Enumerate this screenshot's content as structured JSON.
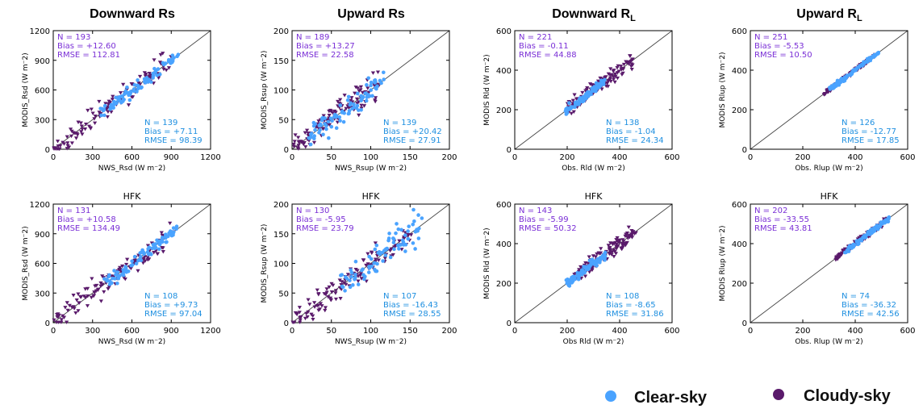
{
  "column_titles": [
    {
      "main": "Downward Rs",
      "sub": ""
    },
    {
      "main": "Upward Rs",
      "sub": ""
    },
    {
      "main": "Downward R",
      "sub": "L"
    },
    {
      "main": "Upward R",
      "sub": "L"
    }
  ],
  "legend": {
    "clear_label": "Clear-sky",
    "cloudy_label": "Cloudy-sky",
    "clear_color": "#4aa3ff",
    "cloudy_color": "#5a1a6b"
  },
  "chart_data": [
    {
      "type": "scatter",
      "row": 0,
      "col": 0,
      "site_label": "",
      "xlabel": "NWS_Rsd (W m⁻2)",
      "ylabel": "MODIS_Rsd (W m⁻2)",
      "xlim": [
        0,
        1200
      ],
      "ylim": [
        0,
        1200
      ],
      "xticks": [
        0,
        300,
        600,
        900,
        1200
      ],
      "yticks": [
        0,
        300,
        600,
        900,
        1200
      ],
      "x_tick_labels": [
        "0",
        "300",
        "600",
        "900",
        "1200"
      ],
      "y_tick_labels": [
        "0",
        "300",
        "600",
        "900",
        "1200"
      ],
      "cloudy": {
        "N": "N = 193",
        "Bias": "Bias = +12.60",
        "RMSE": "RMSE = 112.81",
        "lo": 0,
        "hi": 900,
        "spread": 110
      },
      "clear": {
        "N": "N = 139",
        "Bias": "Bias = +7.11",
        "RMSE": "RMSE = 98.39",
        "lo": 350,
        "hi": 950,
        "spread": 55
      }
    },
    {
      "type": "scatter",
      "row": 0,
      "col": 1,
      "site_label": "",
      "xlabel": "NWS_Rsup (W m⁻2)",
      "ylabel": "MODIS_Rsup (W m⁻2)",
      "xlim": [
        0,
        200
      ],
      "ylim": [
        0,
        200
      ],
      "xticks": [
        0,
        50,
        100,
        150,
        200
      ],
      "yticks": [
        0,
        50,
        100,
        150,
        200
      ],
      "x_tick_labels": [
        "0",
        "50",
        "100",
        "150",
        "200"
      ],
      "y_tick_labels": [
        "0",
        "50",
        "100",
        "150",
        "200"
      ],
      "cloudy": {
        "N": "N = 189",
        "Bias": "Bias = +13.27",
        "RMSE": "RMSE = 22.58",
        "lo": 0,
        "hi": 110,
        "spread": 20
      },
      "clear": {
        "N": "N = 139",
        "Bias": "Bias = +20.42",
        "RMSE": "RMSE = 27.91",
        "lo": 20,
        "hi": 115,
        "spread": 18
      }
    },
    {
      "type": "scatter",
      "row": 0,
      "col": 2,
      "site_label": "",
      "xlabel": "Obs. Rld (W m⁻2)",
      "ylabel": "MODIS Rld (W m⁻2)",
      "xlim": [
        0,
        600
      ],
      "ylim": [
        0,
        600
      ],
      "xticks": [
        0,
        200,
        400,
        600
      ],
      "yticks": [
        0,
        200,
        400,
        600
      ],
      "x_tick_labels": [
        "0",
        "200",
        "400",
        "600"
      ],
      "y_tick_labels": [
        "0",
        "200",
        "400",
        "600"
      ],
      "cloudy": {
        "N": "N = 221",
        "Bias": "Bias = -0.11",
        "RMSE": "RMSE = 44.88",
        "lo": 200,
        "hi": 460,
        "spread": 40
      },
      "clear": {
        "N": "N = 138",
        "Bias": "Bias = -1.04",
        "RMSE": "RMSE = 24.34",
        "lo": 190,
        "hi": 340,
        "spread": 18
      }
    },
    {
      "type": "scatter",
      "row": 0,
      "col": 3,
      "site_label": "",
      "xlabel": "Obs. Rlup (W m⁻2)",
      "ylabel": "MODIS Rlup (W m⁻2)",
      "xlim": [
        0,
        600
      ],
      "ylim": [
        0,
        600
      ],
      "xticks": [
        0,
        200,
        400,
        600
      ],
      "yticks": [
        0,
        200,
        400,
        600
      ],
      "x_tick_labels": [
        "0",
        "200",
        "400",
        "600"
      ],
      "y_tick_labels": [
        "0",
        "200",
        "400",
        "600"
      ],
      "cloudy": {
        "N": "N = 251",
        "Bias": "Bias = -5.53",
        "RMSE": "RMSE = 10.50",
        "lo": 280,
        "hi": 480,
        "spread": 8
      },
      "clear": {
        "N": "N = 126",
        "Bias": "Bias = -12.77",
        "RMSE": "RMSE = 17.85",
        "lo": 300,
        "hi": 490,
        "spread": 10
      }
    },
    {
      "type": "scatter",
      "row": 1,
      "col": 0,
      "site_label": "HFK",
      "xlabel": "NWS_Rsd (W m⁻2)",
      "ylabel": "MODIS_Rsd (W m⁻2)",
      "xlim": [
        0,
        1200
      ],
      "ylim": [
        0,
        1200
      ],
      "xticks": [
        0,
        300,
        600,
        900,
        1200
      ],
      "yticks": [
        0,
        300,
        600,
        900,
        1200
      ],
      "x_tick_labels": [
        "0",
        "300",
        "600",
        "900",
        "1200"
      ],
      "y_tick_labels": [
        "0",
        "300",
        "600",
        "900",
        "1200"
      ],
      "cloudy": {
        "N": "N = 131",
        "Bias": "Bias = +10.58",
        "RMSE": "RMSE = 134.49",
        "lo": 0,
        "hi": 900,
        "spread": 120
      },
      "clear": {
        "N": "N = 108",
        "Bias": "Bias = +9.73",
        "RMSE": "RMSE = 97.04",
        "lo": 400,
        "hi": 950,
        "spread": 60
      }
    },
    {
      "type": "scatter",
      "row": 1,
      "col": 1,
      "site_label": "HFK",
      "xlabel": "NWS_Rsup (W m⁻2)",
      "ylabel": "MODIS_Rsup (W m⁻2)",
      "xlim": [
        0,
        200
      ],
      "ylim": [
        0,
        200
      ],
      "xticks": [
        0,
        50,
        100,
        150,
        200
      ],
      "yticks": [
        0,
        50,
        100,
        150,
        200
      ],
      "x_tick_labels": [
        "0",
        "50",
        "100",
        "150",
        "200"
      ],
      "y_tick_labels": [
        "0",
        "50",
        "100",
        "150",
        "200"
      ],
      "cloudy": {
        "N": "N = 130",
        "Bias": "Bias = -5.95",
        "RMSE": "RMSE = 23.79",
        "lo": 0,
        "hi": 150,
        "spread": 20
      },
      "clear": {
        "N": "N = 107",
        "Bias": "Bias = -16.43",
        "RMSE": "RMSE = 28.55",
        "lo": 60,
        "hi": 165,
        "spread": 25
      }
    },
    {
      "type": "scatter",
      "row": 1,
      "col": 2,
      "site_label": "HFK",
      "xlabel": "Obs Rld (W m⁻2)",
      "ylabel": "MODIS Rld (W m⁻2)",
      "xlim": [
        0,
        600
      ],
      "ylim": [
        0,
        600
      ],
      "xticks": [
        0,
        200,
        400,
        600
      ],
      "yticks": [
        0,
        200,
        400,
        600
      ],
      "x_tick_labels": [
        "0",
        "200",
        "400",
        "600"
      ],
      "y_tick_labels": [
        "0",
        "200",
        "400",
        "600"
      ],
      "cloudy": {
        "N": "N = 143",
        "Bias": "Bias = -5.99",
        "RMSE": "RMSE = 50.32",
        "lo": 240,
        "hi": 460,
        "spread": 42
      },
      "clear": {
        "N": "N = 108",
        "Bias": "Bias = -8.65",
        "RMSE": "RMSE = 31.86",
        "lo": 200,
        "hi": 350,
        "spread": 20
      }
    },
    {
      "type": "scatter",
      "row": 1,
      "col": 3,
      "site_label": "HFK",
      "xlabel": "Obs. Rlup (W m⁻2)",
      "ylabel": "MODIS Rlup (W m⁻2)",
      "xlim": [
        0,
        600
      ],
      "ylim": [
        0,
        600
      ],
      "xticks": [
        0,
        200,
        400,
        600
      ],
      "yticks": [
        0,
        200,
        400,
        600
      ],
      "x_tick_labels": [
        "0",
        "200",
        "400",
        "600"
      ],
      "y_tick_labels": [
        "0",
        "200",
        "400",
        "600"
      ],
      "cloudy": {
        "N": "N = 202",
        "Bias": "Bias = -33.55",
        "RMSE": "RMSE = 43.81",
        "lo": 320,
        "hi": 520,
        "spread": 14
      },
      "clear": {
        "N": "N = 74",
        "Bias": "Bias = -36.32",
        "RMSE": "RMSE = 42.56",
        "lo": 360,
        "hi": 530,
        "spread": 12
      }
    }
  ]
}
